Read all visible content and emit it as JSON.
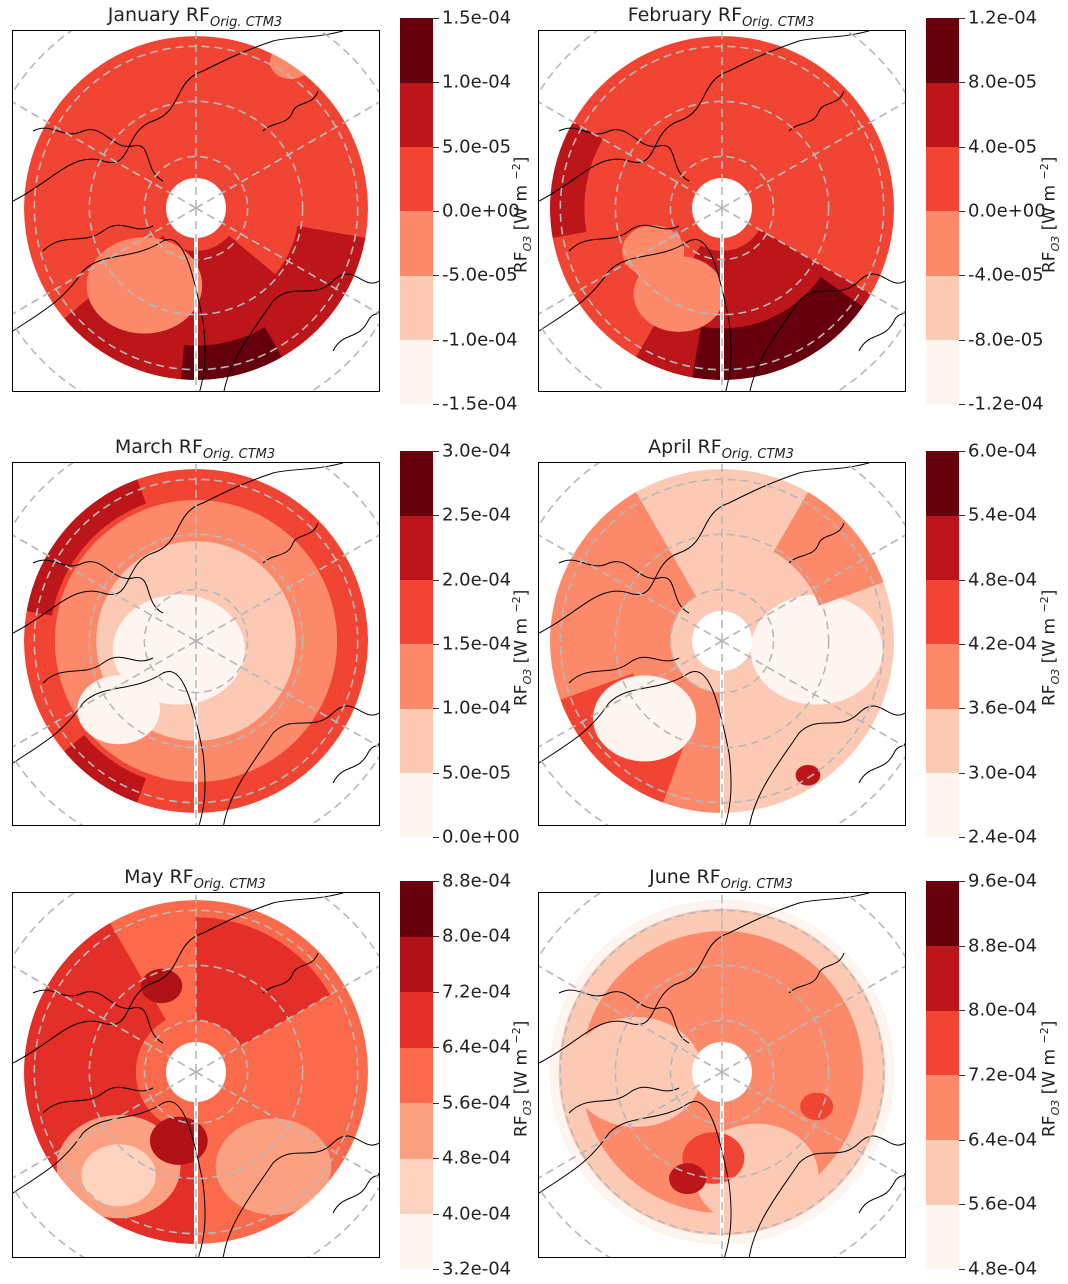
{
  "colorbar_label": {
    "prefix": "RF",
    "sub": "O3",
    "units": "[W m",
    "sup": "−2",
    "close": "]"
  },
  "palette": [
    "#fff5f0",
    "#fcc9b4",
    "#fc8a6a",
    "#f14432",
    "#bc151a",
    "#67000d"
  ],
  "chart_data": [
    {
      "type": "heatmap",
      "title_prefix": "January RF",
      "title_sub": "Orig. CTM3",
      "projection": "north-polar-stereographic",
      "levels": [
        "-1.5e-04",
        "-1.0e-04",
        "-5.0e-05",
        "0.0e+00",
        "5.0e-05",
        "1.0e-04",
        "1.5e-04"
      ],
      "level_values": [
        -0.00015,
        -0.0001,
        -5e-05,
        0,
        5e-05,
        0.0001,
        0.00015
      ],
      "pattern": {
        "background": 3,
        "patches": [
          {
            "level": 4,
            "shape": "sector",
            "a0": 130,
            "a1": 230,
            "r0": 0.25,
            "r1": 1.0
          },
          {
            "level": 4,
            "shape": "sector",
            "a0": 100,
            "a1": 130,
            "r0": 0.6,
            "r1": 1.0
          },
          {
            "level": 5,
            "shape": "sector",
            "a0": 150,
            "a1": 185,
            "r0": 0.8,
            "r1": 1.0
          },
          {
            "level": 2,
            "shape": "blob",
            "cx": -0.3,
            "cy": 0.45,
            "r": 0.28
          },
          {
            "level": 2,
            "shape": "blob",
            "cx": 0.55,
            "cy": -0.85,
            "r": 0.1
          }
        ]
      }
    },
    {
      "type": "heatmap",
      "title_prefix": "February RF",
      "title_sub": "Orig. CTM3",
      "projection": "north-polar-stereographic",
      "levels": [
        "-1.2e-04",
        "-8.0e-05",
        "-4.0e-05",
        "0.0e+00",
        "4.0e-05",
        "8.0e-05",
        "1.2e-04"
      ],
      "level_values": [
        -0.00012,
        -8e-05,
        -4e-05,
        0,
        4e-05,
        8e-05,
        0.00012
      ],
      "pattern": {
        "background": 3,
        "patches": [
          {
            "level": 4,
            "shape": "sector",
            "a0": 120,
            "a1": 210,
            "r0": 0.25,
            "r1": 1.0
          },
          {
            "level": 4,
            "shape": "sector",
            "a0": -100,
            "a1": -60,
            "r0": 0.8,
            "r1": 1.0
          },
          {
            "level": 5,
            "shape": "sector",
            "a0": 125,
            "a1": 190,
            "r0": 0.7,
            "r1": 1.0
          },
          {
            "level": 2,
            "shape": "blob",
            "cx": -0.25,
            "cy": 0.5,
            "r": 0.22
          },
          {
            "level": 2,
            "shape": "blob",
            "cx": -0.4,
            "cy": 0.25,
            "r": 0.15
          }
        ]
      }
    },
    {
      "type": "heatmap",
      "title_prefix": "March RF",
      "title_sub": "Orig. CTM3",
      "projection": "north-polar-stereographic",
      "levels": [
        "0.0e+00",
        "5.0e-05",
        "1.0e-04",
        "1.5e-04",
        "2.0e-04",
        "2.5e-04",
        "3.0e-04"
      ],
      "level_values": [
        0,
        5e-05,
        0.0001,
        0.00015,
        0.0002,
        0.00025,
        0.0003
      ],
      "pattern": {
        "background": 3,
        "hole": false,
        "patches": [
          {
            "level": 2,
            "shape": "disk",
            "r": 0.82
          },
          {
            "level": 1,
            "shape": "disk",
            "r": 0.58
          },
          {
            "level": 0,
            "shape": "blob",
            "cx": -0.1,
            "cy": 0.05,
            "r": 0.32
          },
          {
            "level": 0,
            "shape": "blob",
            "cx": -0.45,
            "cy": 0.4,
            "r": 0.2
          },
          {
            "level": 4,
            "shape": "sector",
            "a0": -80,
            "a1": -20,
            "r0": 0.85,
            "r1": 1.0
          },
          {
            "level": 4,
            "shape": "sector",
            "a0": 200,
            "a1": 230,
            "r0": 0.85,
            "r1": 1.0
          }
        ]
      }
    },
    {
      "type": "heatmap",
      "title_prefix": "April RF",
      "title_sub": "Orig. CTM3",
      "projection": "north-polar-stereographic",
      "levels": [
        "2.4e-04",
        "3.0e-04",
        "3.6e-04",
        "4.2e-04",
        "4.8e-04",
        "5.4e-04",
        "6.0e-04"
      ],
      "level_values": [
        0.00024,
        0.0003,
        0.00036,
        0.00042,
        0.00048,
        0.00054,
        0.0006
      ],
      "pattern": {
        "background": 1,
        "patches": [
          {
            "level": 2,
            "shape": "sector",
            "a0": 180,
            "a1": 330,
            "r0": 0.3,
            "r1": 1.0
          },
          {
            "level": 3,
            "shape": "sector",
            "a0": 200,
            "a1": 250,
            "r0": 0.55,
            "r1": 1.0
          },
          {
            "level": 0,
            "shape": "blob",
            "cx": 0.55,
            "cy": 0.05,
            "r": 0.32
          },
          {
            "level": 0,
            "shape": "blob",
            "cx": -0.45,
            "cy": 0.45,
            "r": 0.25
          },
          {
            "level": 2,
            "shape": "sector",
            "a0": 30,
            "a1": 70,
            "r0": 0.6,
            "r1": 1.0
          },
          {
            "level": 4,
            "shape": "blob",
            "cx": 0.5,
            "cy": 0.78,
            "r": 0.06
          }
        ]
      }
    },
    {
      "type": "heatmap",
      "title_prefix": "May RF",
      "title_sub": "Orig. CTM3",
      "projection": "north-polar-stereographic",
      "levels": [
        "3.2e-04",
        "4.0e-04",
        "4.8e-04",
        "5.6e-04",
        "6.4e-04",
        "7.2e-04",
        "8.0e-04",
        "8.8e-04"
      ],
      "level_values": [
        0.00032,
        0.0004,
        0.00048,
        0.00056,
        0.00064,
        0.00072,
        0.0008,
        0.00088
      ],
      "pattern": {
        "background": 3,
        "patches": [
          {
            "level": 4,
            "shape": "sector",
            "a0": 180,
            "a1": 330,
            "r0": 0.35,
            "r1": 1.0
          },
          {
            "level": 4,
            "shape": "sector",
            "a0": 0,
            "a1": 60,
            "r0": 0.3,
            "r1": 0.9
          },
          {
            "level": 2,
            "shape": "blob",
            "cx": -0.45,
            "cy": 0.55,
            "r": 0.3
          },
          {
            "level": 1,
            "shape": "blob",
            "cx": -0.45,
            "cy": 0.6,
            "r": 0.18
          },
          {
            "level": 2,
            "shape": "blob",
            "cx": 0.45,
            "cy": 0.55,
            "r": 0.28
          },
          {
            "level": 5,
            "shape": "blob",
            "cx": -0.1,
            "cy": 0.4,
            "r": 0.14
          },
          {
            "level": 5,
            "shape": "blob",
            "cx": -0.2,
            "cy": -0.5,
            "r": 0.1
          }
        ]
      }
    },
    {
      "type": "heatmap",
      "title_prefix": "June RF",
      "title_sub": "Orig. CTM3",
      "projection": "north-polar-stereographic",
      "levels": [
        "4.8e-04",
        "5.6e-04",
        "6.4e-04",
        "7.2e-04",
        "8.0e-04",
        "8.8e-04",
        "9.6e-04"
      ],
      "level_values": [
        0.00048,
        0.00056,
        0.00064,
        0.00072,
        0.0008,
        0.00088,
        0.00096
      ],
      "pattern": {
        "background": 2,
        "patches": [
          {
            "level": 1,
            "shape": "ring",
            "r0": 0.82,
            "r1": 1.0
          },
          {
            "level": 0,
            "shape": "ring",
            "r0": 0.95,
            "r1": 1.0
          },
          {
            "level": 1,
            "shape": "blob",
            "cx": -0.5,
            "cy": 0.0,
            "r": 0.32
          },
          {
            "level": 1,
            "shape": "blob",
            "cx": 0.2,
            "cy": 0.6,
            "r": 0.3
          },
          {
            "level": 3,
            "shape": "blob",
            "cx": -0.05,
            "cy": 0.5,
            "r": 0.15
          },
          {
            "level": 4,
            "shape": "blob",
            "cx": -0.2,
            "cy": 0.62,
            "r": 0.09
          },
          {
            "level": 3,
            "shape": "blob",
            "cx": 0.55,
            "cy": 0.2,
            "r": 0.08
          }
        ]
      }
    }
  ]
}
